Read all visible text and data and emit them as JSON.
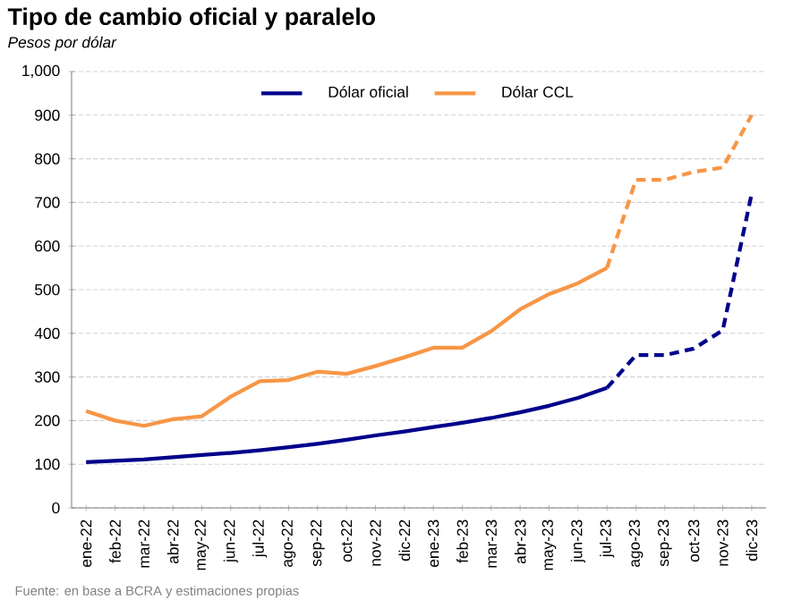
{
  "chart_data": {
    "type": "line",
    "title": "Tipo de cambio oficial y paralelo",
    "subtitle": "Pesos por dólar",
    "categories": [
      "ene-22",
      "feb-22",
      "mar-22",
      "abr-22",
      "may-22",
      "jun-22",
      "jul-22",
      "ago-22",
      "sep-22",
      "oct-22",
      "nov-22",
      "dic-22",
      "ene-23",
      "feb-23",
      "mar-23",
      "abr-23",
      "may-23",
      "jun-23",
      "jul-23",
      "ago-23",
      "sep-23",
      "oct-23",
      "nov-23",
      "dic-23"
    ],
    "series": [
      {
        "name": "Dólar oficial",
        "color": "#00008b",
        "line_style": "solid",
        "values": [
          105,
          108,
          111,
          116,
          121,
          126,
          132,
          139,
          147,
          156,
          166,
          175,
          185,
          195,
          206,
          219,
          234,
          252,
          275,
          null,
          null,
          null,
          null,
          null
        ]
      },
      {
        "name": "Dólar CCL",
        "color": "#f79646",
        "line_style": "solid",
        "values": [
          222,
          200,
          188,
          203,
          210,
          255,
          290,
          293,
          312,
          307,
          325,
          345,
          367,
          367,
          405,
          455,
          490,
          515,
          550,
          null,
          null,
          null,
          null,
          null
        ]
      },
      {
        "color": "#00008b",
        "line_style": "dashed",
        "values": [
          null,
          null,
          null,
          null,
          null,
          null,
          null,
          null,
          null,
          null,
          null,
          null,
          null,
          null,
          null,
          null,
          null,
          null,
          275,
          350,
          350,
          365,
          407,
          720
        ]
      },
      {
        "color": "#f79646",
        "line_style": "dashed",
        "values": [
          null,
          null,
          null,
          null,
          null,
          null,
          null,
          null,
          null,
          null,
          null,
          null,
          null,
          null,
          null,
          null,
          null,
          null,
          550,
          752,
          752,
          770,
          780,
          900
        ]
      }
    ],
    "ylim": [
      0,
      1000
    ],
    "yticks": [
      0,
      100,
      200,
      300,
      400,
      500,
      600,
      700,
      800,
      900,
      {
        "value": 1000,
        "label": "1,000"
      }
    ],
    "grid": "y",
    "legend": "top",
    "annotations": [
      "Fuente: en base a BCRA y estimaciones propias"
    ]
  }
}
